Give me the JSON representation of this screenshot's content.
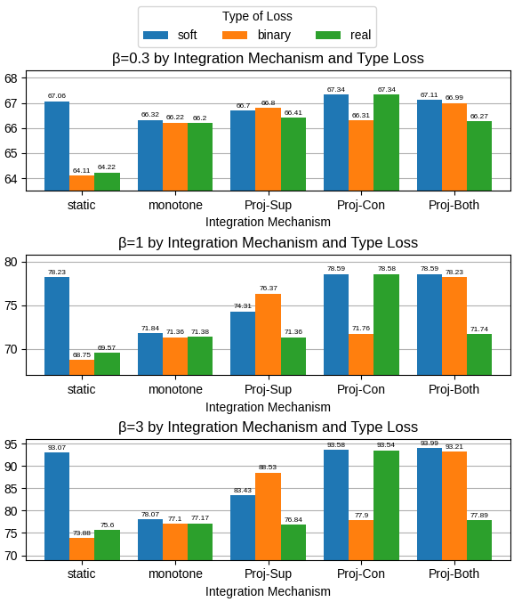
{
  "chart_data": [
    {
      "type": "bar",
      "title": "β=0.3 by Integration Mechanism and Type Loss",
      "x_label": "Integration Mechanism",
      "categories": [
        "static",
        "monotone",
        "Proj-Sup",
        "Proj-Con",
        "Proj-Both"
      ],
      "series": [
        {
          "name": "soft",
          "values": [
            67.06,
            66.32,
            66.7,
            67.34,
            67.11
          ]
        },
        {
          "name": "binary",
          "values": [
            64.11,
            66.22,
            66.8,
            66.31,
            66.99
          ]
        },
        {
          "name": "real",
          "values": [
            64.22,
            66.2,
            66.41,
            67.34,
            66.27
          ]
        }
      ],
      "ylim": [
        63.5,
        68.3
      ],
      "yticks": [
        64,
        65,
        66,
        67,
        68
      ],
      "grid": true,
      "data_labels": true,
      "legend": "top",
      "legend_title": "Type of Loss"
    },
    {
      "type": "bar",
      "title": "β=1 by Integration Mechanism and Type Loss",
      "x_label": "Integration Mechanism",
      "categories": [
        "static",
        "monotone",
        "Proj-Sup",
        "Proj-Con",
        "Proj-Both"
      ],
      "series": [
        {
          "name": "soft",
          "values": [
            78.23,
            71.84,
            74.31,
            78.59,
            78.59
          ]
        },
        {
          "name": "binary",
          "values": [
            68.75,
            71.36,
            76.37,
            71.76,
            78.23
          ]
        },
        {
          "name": "real",
          "values": [
            69.57,
            71.38,
            71.36,
            78.58,
            71.74
          ]
        }
      ],
      "ylim": [
        67.0,
        80.8
      ],
      "yticks": [
        70,
        75,
        80
      ],
      "grid": true,
      "data_labels": true
    },
    {
      "type": "bar",
      "title": "β=3 by Integration Mechanism and Type Loss",
      "x_label": "Integration Mechanism",
      "categories": [
        "static",
        "monotone",
        "Proj-Sup",
        "Proj-Con",
        "Proj-Both"
      ],
      "series": [
        {
          "name": "soft",
          "values": [
            93.07,
            78.07,
            83.43,
            93.58,
            93.99
          ]
        },
        {
          "name": "binary",
          "values": [
            73.88,
            77.1,
            88.53,
            77.9,
            93.21
          ]
        },
        {
          "name": "real",
          "values": [
            75.6,
            77.17,
            76.84,
            93.54,
            77.89
          ]
        }
      ],
      "ylim": [
        69.0,
        96.0
      ],
      "yticks": [
        70,
        75,
        80,
        85,
        90,
        95
      ],
      "grid": true,
      "data_labels": true
    }
  ]
}
